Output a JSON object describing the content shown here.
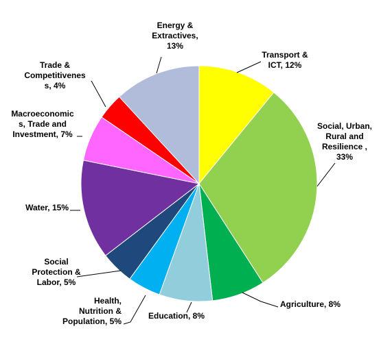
{
  "chart_data": {
    "type": "pie",
    "values": [
      12,
      33,
      8,
      8,
      5,
      5,
      15,
      7,
      4,
      13
    ],
    "value_labels": [
      "Transport &\nICT, 12%",
      "Social, Urban,\nRural and\nResilience ,\n33%",
      "Agriculture, 8%",
      "Education, 8%",
      "Health,\nNutrition &\nPopulation, 5%",
      "Social\nProtection &\nLabor, 5%",
      "Water, 15%",
      "Macroeconomic\ns, Trade and\nInvestment, 7%",
      "Trade &\nCompetitivenes\ns, 4%",
      "Energy &\nExtractives,\n13%"
    ],
    "colors": [
      "#ffff00",
      "#92d050",
      "#00b050",
      "#92cddc",
      "#00b0f0",
      "#1f497d",
      "#7030a0",
      "#ff66ff",
      "#ff0000",
      "#b0bcd9"
    ]
  }
}
